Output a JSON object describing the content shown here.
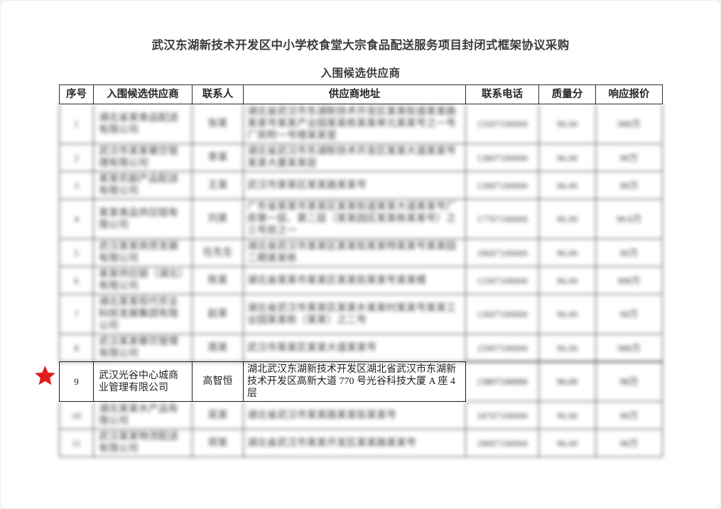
{
  "document": {
    "title": "武汉东湖新技术开发区中小学校食堂大宗食品配送服务项目封闭式框架协议采购",
    "subtitle": "入围候选供应商"
  },
  "highlight_marker": {
    "icon": "red-star",
    "color": "#df1d1d",
    "marks_row_seq": "9"
  },
  "table": {
    "headers": [
      "序号",
      "入围候选供应商",
      "联系人",
      "供应商地址",
      "联系电话",
      "质量分",
      "响应报价"
    ],
    "rows": [
      {
        "seq": "1",
        "supplier": "湖北省某食品配送有限公司",
        "contact": "张某",
        "address": "湖北省武汉市东湖新技术开发区某某街道某某路某某号某某产业园某某栋某某单元某某号之一号厂房附一号楼某某室",
        "phone": "13507100000",
        "score": "96.00",
        "price": "988万",
        "blurred": true
      },
      {
        "seq": "2",
        "supplier": "武汉市某某餐饮管理有限公司",
        "contact": "李某",
        "address": "湖北省武汉市东湖新技术开发区某某大道某某号某某大厦某某层",
        "phone": "13807100000",
        "score": "96.00",
        "price": "98万",
        "blurred": true
      },
      {
        "seq": "3",
        "supplier": "某某农副产品配送有限公司",
        "contact": "王某",
        "address": "武汉市某某区某某路某某号",
        "phone": "13907100000",
        "score": "96.00",
        "price": "98万",
        "blurred": true
      },
      {
        "seq": "4",
        "supplier": "某某食品供应链有限公司",
        "contact": "刘某",
        "address": "广东省某某市某某区某某街道某某大道某某号厂房第一层、第二层（某某园区某某栋某某号）之三号房之一",
        "phone": "17707100000",
        "score": "96.00",
        "price": "98.8万",
        "blurred": true
      },
      {
        "seq": "5",
        "supplier": "武汉某某商贸发展有限公司",
        "contact": "任先生",
        "address": "湖北省武汉市某某区某某街某某特某某号某某园二期某某栋",
        "phone": "18607100000",
        "score": "96.00",
        "price": "98万",
        "blurred": true
      },
      {
        "seq": "6",
        "supplier": "某某供应链（湖北）有限公司",
        "contact": "陈某",
        "address": "湖北省某某市某某区某某街某某号某某楼",
        "phone": "13307100000",
        "score": "96.00",
        "price": "988万",
        "blurred": true
      },
      {
        "seq": "7",
        "supplier": "湖北某某现代农业科技发展集团有限公司",
        "contact": "赵某",
        "address": "湖北省武汉市某某区某某乡某某村某某号某某工业园某某栋（某某）之二号",
        "phone": "13607100000",
        "score": "96.00",
        "price": "98万",
        "blurred": true
      },
      {
        "seq": "8",
        "supplier": "武汉某某餐饮管理有限公司",
        "contact": "周某",
        "address": "武汉市某某区某某大道某某号",
        "phone": "15907100000",
        "score": "96.00",
        "price": "988万",
        "blurred": true
      },
      {
        "seq": "9",
        "supplier": "武汉光谷中心城商业管理有限公司",
        "contact": "高智恒",
        "address": "湖北武汉东湖新技术开发区湖北省武汉市东湖新技术开发区高新大道 770 号光谷科技大厦 A 座 4 层",
        "phone": "13807100000",
        "score": "96.00",
        "price": "98万",
        "blurred": false,
        "highlighted": true,
        "blurred_cells": [
          4,
          5,
          6
        ]
      },
      {
        "seq": "10",
        "supplier": "湖北某某水产品有限公司",
        "contact": "吴某",
        "address": "湖北省武汉市某某路某某街某某号",
        "phone": "18707100000",
        "score": "96.00",
        "price": "98万",
        "blurred": true
      },
      {
        "seq": "11",
        "supplier": "武汉某某物流配送有限公司",
        "contact": "郑某",
        "address": "湖北省武汉市某某开发区某某路某某号",
        "phone": "18007100000",
        "score": "96.00",
        "price": "98万",
        "blurred": true
      }
    ]
  }
}
